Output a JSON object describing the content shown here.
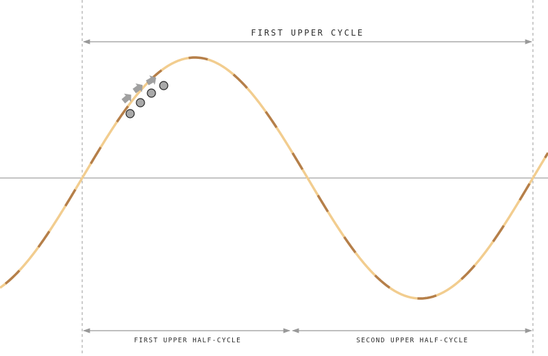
{
  "labels": {
    "cycle": "FIRST UPPER CYCLE",
    "half_cycle_1": "FIRST UPPER HALF-CYCLE",
    "half_cycle_2": "SECOND UPPER HALF-CYCLE"
  },
  "colors": {
    "wave_light": "#f2cd8f",
    "wave_dark": "#b57f4a",
    "guide": "#999999",
    "axis": "#8a8a8a",
    "particle_fill": "#a9a9a9",
    "arrow": "#a0a0a0"
  },
  "icons": {
    "particle": "circle-marker",
    "motion": "arrow-up-right-icon"
  }
}
